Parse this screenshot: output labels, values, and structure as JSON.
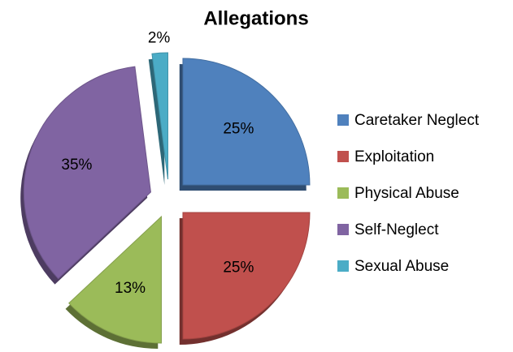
{
  "chart_data": {
    "type": "pie",
    "title": "Allegations",
    "categories": [
      "Caretaker Neglect",
      "Exploitation",
      "Physical Abuse",
      "Self-Neglect",
      "Sexual Abuse"
    ],
    "values": [
      25,
      25,
      13,
      35,
      2
    ],
    "value_labels": [
      "25%",
      "25%",
      "13%",
      "35%",
      "2%"
    ],
    "colors": [
      "#4f81bd",
      "#c0504d",
      "#9bbb59",
      "#8064a2",
      "#4bacc6"
    ],
    "legend": "right"
  }
}
